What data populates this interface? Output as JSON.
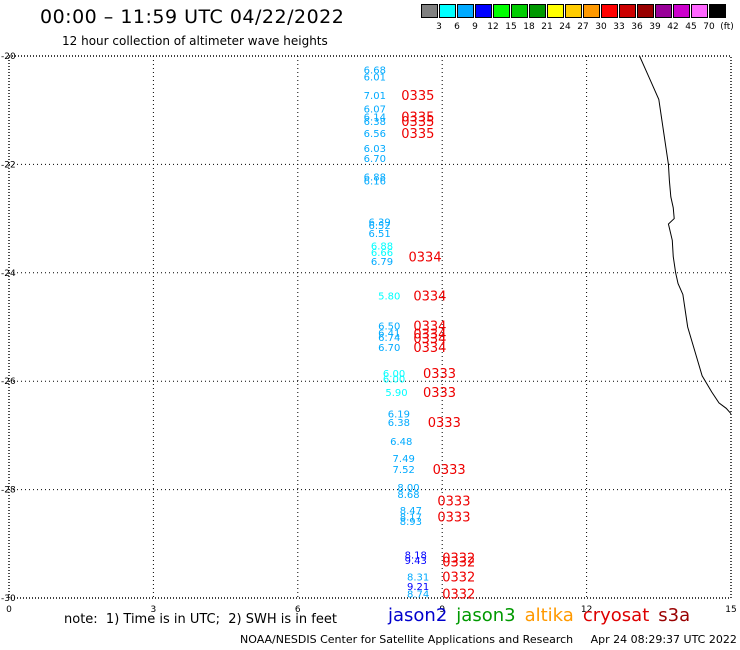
{
  "header": {
    "title": "00:00 – 11:59 UTC 04/22/2022",
    "subtitle": "12 hour collection of altimeter wave heights"
  },
  "color_scale": {
    "colors": [
      "#808080",
      "#00ffff",
      "#00aaff",
      "#0000ff",
      "#00ff00",
      "#00cc00",
      "#009900",
      "#ffff00",
      "#ffcc00",
      "#ff9900",
      "#ff0000",
      "#cc0000",
      "#990000",
      "#990099",
      "#cc00cc",
      "#ff66ff",
      "#000000"
    ],
    "ticks": [
      "3",
      "6",
      "9",
      "12",
      "15",
      "18",
      "21",
      "24",
      "27",
      "30",
      "33",
      "36",
      "39",
      "42",
      "45",
      "70"
    ],
    "unit": "(ft)"
  },
  "footer": {
    "note": "note:  1) Time is in UTC;  2) SWH is in feet",
    "legend": [
      {
        "label": "jason2",
        "color": "#0000cc"
      },
      {
        "label": "jason3",
        "color": "#009900"
      },
      {
        "label": "altika",
        "color": "#ff9900"
      },
      {
        "label": "cryosat",
        "color": "#dd0000"
      },
      {
        "label": "s3a",
        "color": "#990000"
      }
    ],
    "credit": "NOAA/NESDIS Center for Satellite Applications and Research     Apr 24 08:29:37 UTC 2022"
  },
  "chart_data": {
    "type": "scatter",
    "xlim": [
      0,
      15
    ],
    "ylim": [
      -30,
      -20
    ],
    "xticks": [
      "0",
      "3",
      "6",
      "9",
      "12",
      "15"
    ],
    "yticks": [
      "-20",
      "-22",
      "-24",
      "-26",
      "-28",
      "-30"
    ],
    "grid": true,
    "swh_labels": [
      {
        "x": 7.6,
        "y": -20.25,
        "v": "6.68",
        "c": "#00aaff"
      },
      {
        "x": 7.6,
        "y": -20.38,
        "v": "6.01",
        "c": "#00aaff"
      },
      {
        "x": 7.6,
        "y": -20.72,
        "v": "7.01",
        "c": "#00aaff"
      },
      {
        "x": 7.6,
        "y": -20.97,
        "v": "6.07",
        "c": "#00aaff"
      },
      {
        "x": 7.6,
        "y": -21.12,
        "v": "6.14",
        "c": "#00aaff"
      },
      {
        "x": 7.6,
        "y": -21.2,
        "v": "6.38",
        "c": "#00aaff"
      },
      {
        "x": 7.6,
        "y": -21.42,
        "v": "6.56",
        "c": "#00aaff"
      },
      {
        "x": 7.6,
        "y": -21.7,
        "v": "6.03",
        "c": "#00aaff"
      },
      {
        "x": 7.6,
        "y": -21.88,
        "v": "6.70",
        "c": "#00aaff"
      },
      {
        "x": 7.6,
        "y": -22.22,
        "v": "6.88",
        "c": "#00aaff"
      },
      {
        "x": 7.6,
        "y": -22.3,
        "v": "6.16",
        "c": "#00aaff"
      },
      {
        "x": 7.7,
        "y": -23.05,
        "v": "6.39",
        "c": "#00aaff"
      },
      {
        "x": 7.7,
        "y": -23.12,
        "v": "6.52",
        "c": "#00aaff"
      },
      {
        "x": 7.7,
        "y": -23.27,
        "v": "6.51",
        "c": "#00aaff"
      },
      {
        "x": 7.75,
        "y": -23.5,
        "v": "6.88",
        "c": "#00ffff"
      },
      {
        "x": 7.75,
        "y": -23.62,
        "v": "6.66",
        "c": "#00ffff"
      },
      {
        "x": 7.75,
        "y": -23.78,
        "v": "6.79",
        "c": "#00aaff"
      },
      {
        "x": 7.9,
        "y": -24.42,
        "v": "5.80",
        "c": "#00ffff"
      },
      {
        "x": 7.9,
        "y": -24.97,
        "v": "6.50",
        "c": "#00aaff"
      },
      {
        "x": 7.9,
        "y": -25.1,
        "v": "6.41",
        "c": "#00aaff"
      },
      {
        "x": 7.9,
        "y": -25.18,
        "v": "6.74",
        "c": "#00aaff"
      },
      {
        "x": 7.9,
        "y": -25.37,
        "v": "6.70",
        "c": "#00aaff"
      },
      {
        "x": 8.0,
        "y": -25.85,
        "v": "6.00",
        "c": "#00ffff"
      },
      {
        "x": 8.0,
        "y": -25.95,
        "v": "6.00",
        "c": "#00ffff"
      },
      {
        "x": 8.05,
        "y": -26.2,
        "v": "5.90",
        "c": "#00ffff"
      },
      {
        "x": 8.1,
        "y": -26.6,
        "v": "6.19",
        "c": "#00aaff"
      },
      {
        "x": 8.1,
        "y": -26.75,
        "v": "6.38",
        "c": "#00aaff"
      },
      {
        "x": 8.15,
        "y": -27.1,
        "v": "6.48",
        "c": "#00aaff"
      },
      {
        "x": 8.2,
        "y": -27.42,
        "v": "7.49",
        "c": "#00aaff"
      },
      {
        "x": 8.2,
        "y": -27.62,
        "v": "7.52",
        "c": "#00aaff"
      },
      {
        "x": 8.3,
        "y": -27.95,
        "v": "8.00",
        "c": "#00aaff"
      },
      {
        "x": 8.3,
        "y": -28.08,
        "v": "8.68",
        "c": "#00aaff"
      },
      {
        "x": 8.35,
        "y": -28.38,
        "v": "8.47",
        "c": "#00aaff"
      },
      {
        "x": 8.35,
        "y": -28.5,
        "v": "8.17",
        "c": "#00aaff"
      },
      {
        "x": 8.35,
        "y": -28.58,
        "v": "8.93",
        "c": "#00aaff"
      },
      {
        "x": 8.45,
        "y": -29.2,
        "v": "8.18",
        "c": "#0000ff"
      },
      {
        "x": 8.45,
        "y": -29.3,
        "v": "9.43",
        "c": "#0000ff"
      },
      {
        "x": 8.5,
        "y": -29.6,
        "v": "8.31",
        "c": "#00aaff"
      },
      {
        "x": 8.5,
        "y": -29.78,
        "v": "9.21",
        "c": "#0000ff"
      },
      {
        "x": 8.5,
        "y": -29.92,
        "v": "8.74",
        "c": "#00aaff"
      }
    ],
    "pass_labels": [
      {
        "x": 8.15,
        "y": -20.72,
        "v": "0335"
      },
      {
        "x": 8.15,
        "y": -21.12,
        "v": "0335"
      },
      {
        "x": 8.15,
        "y": -21.2,
        "v": "0335"
      },
      {
        "x": 8.15,
        "y": -21.42,
        "v": "0335"
      },
      {
        "x": 8.3,
        "y": -23.7,
        "v": "0334"
      },
      {
        "x": 8.4,
        "y": -24.42,
        "v": "0334"
      },
      {
        "x": 8.4,
        "y": -24.97,
        "v": "0334"
      },
      {
        "x": 8.4,
        "y": -25.12,
        "v": "0334"
      },
      {
        "x": 8.4,
        "y": -25.2,
        "v": "0334"
      },
      {
        "x": 8.4,
        "y": -25.37,
        "v": "0334"
      },
      {
        "x": 8.6,
        "y": -25.85,
        "v": "0333"
      },
      {
        "x": 8.6,
        "y": -26.2,
        "v": "0333"
      },
      {
        "x": 8.7,
        "y": -26.75,
        "v": "0333"
      },
      {
        "x": 8.8,
        "y": -27.62,
        "v": "0333"
      },
      {
        "x": 8.9,
        "y": -28.2,
        "v": "0333"
      },
      {
        "x": 8.9,
        "y": -28.5,
        "v": "0333"
      },
      {
        "x": 9.0,
        "y": -29.25,
        "v": "0332"
      },
      {
        "x": 9.0,
        "y": -29.33,
        "v": "0332"
      },
      {
        "x": 9.0,
        "y": -29.6,
        "v": "0332"
      },
      {
        "x": 9.0,
        "y": -29.92,
        "v": "0332"
      }
    ],
    "coastline": [
      [
        13.1,
        -20.0
      ],
      [
        13.2,
        -20.2
      ],
      [
        13.35,
        -20.5
      ],
      [
        13.5,
        -20.8
      ],
      [
        13.55,
        -21.1
      ],
      [
        13.6,
        -21.4
      ],
      [
        13.65,
        -21.7
      ],
      [
        13.7,
        -22.0
      ],
      [
        13.72,
        -22.3
      ],
      [
        13.75,
        -22.6
      ],
      [
        13.8,
        -22.8
      ],
      [
        13.82,
        -23.0
      ],
      [
        13.7,
        -23.1
      ],
      [
        13.78,
        -23.4
      ],
      [
        13.8,
        -23.7
      ],
      [
        13.85,
        -24.0
      ],
      [
        13.9,
        -24.2
      ],
      [
        14.0,
        -24.4
      ],
      [
        14.05,
        -24.7
      ],
      [
        14.1,
        -25.0
      ],
      [
        14.2,
        -25.3
      ],
      [
        14.3,
        -25.6
      ],
      [
        14.4,
        -25.9
      ],
      [
        14.6,
        -26.2
      ],
      [
        14.75,
        -26.4
      ],
      [
        14.9,
        -26.5
      ],
      [
        15.0,
        -26.6
      ]
    ]
  }
}
